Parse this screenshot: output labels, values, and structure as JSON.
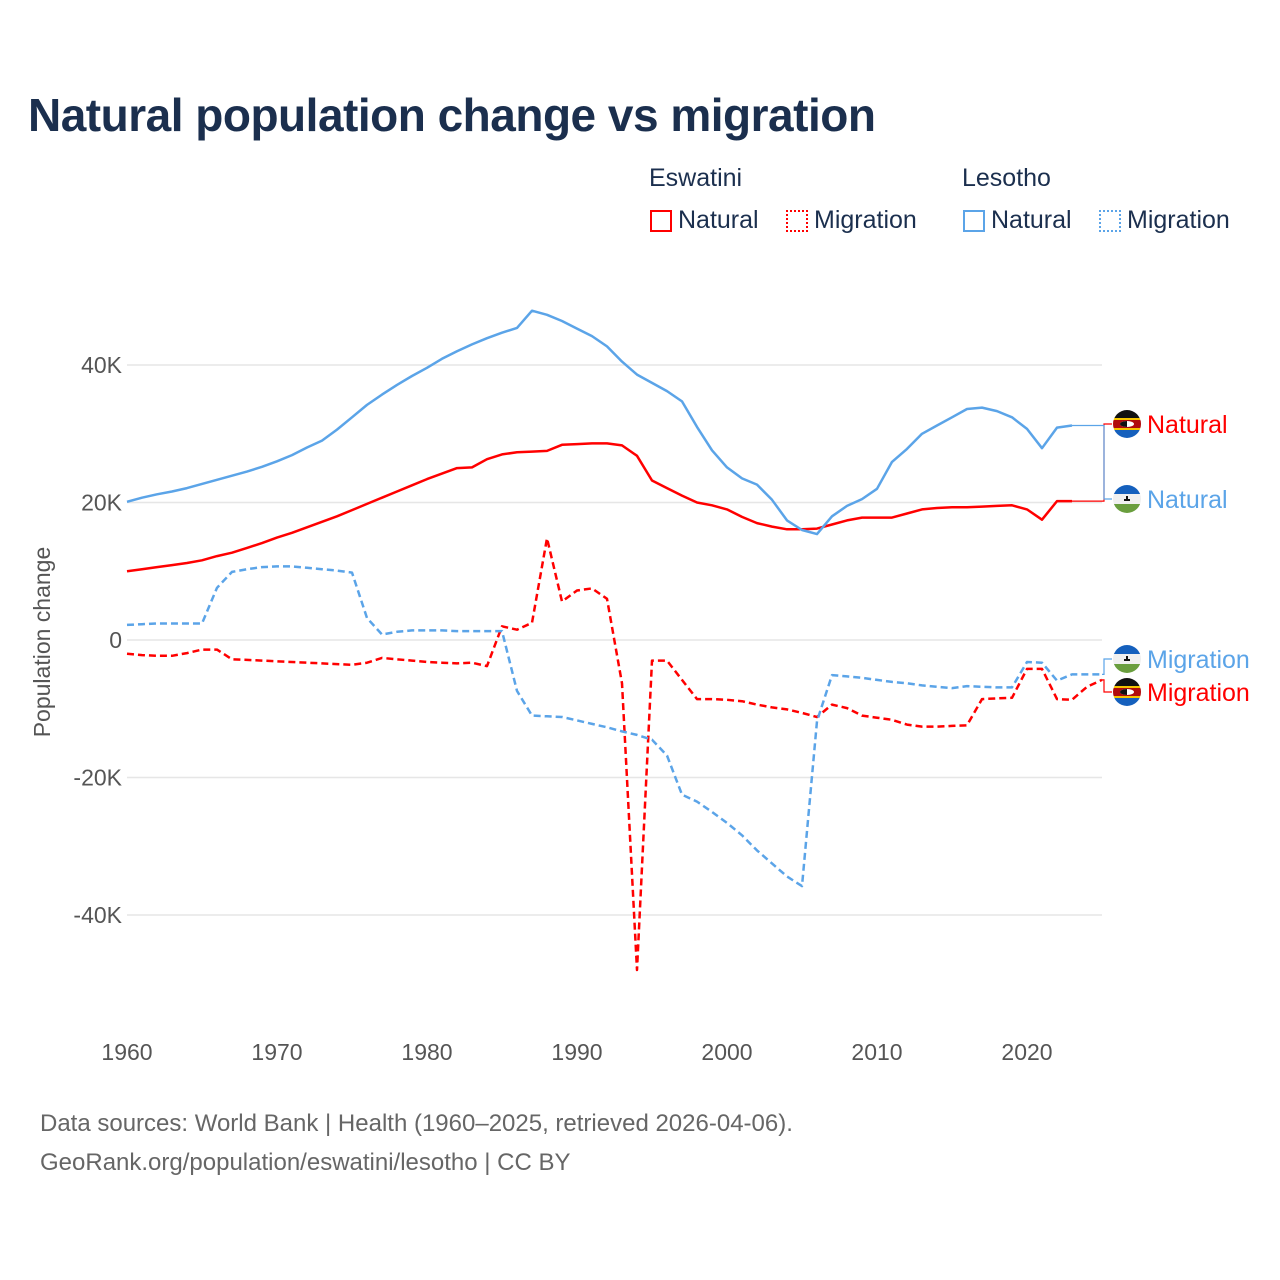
{
  "title": "Natural population change vs migration",
  "legend": {
    "groups": [
      {
        "label": "Eswatini",
        "items": [
          {
            "label": "Natural",
            "style": "solid"
          },
          {
            "label": "Migration",
            "style": "dotted"
          }
        ],
        "color": "#ff0000"
      },
      {
        "label": "Lesotho",
        "items": [
          {
            "label": "Natural",
            "style": "solid"
          },
          {
            "label": "Migration",
            "style": "dotted"
          }
        ],
        "color": "#5ba4e8"
      }
    ]
  },
  "footer": {
    "line1": "Data sources: World Bank | Health (1960–2025, retrieved 2026-04-06).",
    "line2": "GeoRank.org/population/eswatini/lesotho | CC BY"
  },
  "chart_data": {
    "type": "line",
    "title": "Natural population change vs migration",
    "xlabel": "",
    "ylabel": "Population change",
    "xlim": [
      1960,
      2025
    ],
    "ylim": [
      -52000,
      52000
    ],
    "x_ticks": [
      1960,
      1970,
      1980,
      1990,
      2000,
      2010,
      2020
    ],
    "x_tick_labels": [
      "1960",
      "1970",
      "1980",
      "1990",
      "2000",
      "2010",
      "2020"
    ],
    "y_ticks": [
      40000,
      20000,
      0,
      -20000,
      -40000
    ],
    "y_tick_labels": [
      "40K",
      "20K",
      "0",
      "-20K",
      "-40K"
    ],
    "grid": true,
    "legend_position": "top-right",
    "start_year": 1960,
    "series": [
      {
        "name": "Eswatini Natural",
        "end_label": "Natural",
        "color": "#ff0000",
        "dash": false,
        "values": [
          10000,
          10300,
          10600,
          10900,
          11200,
          11600,
          12200,
          12700,
          13400,
          14100,
          14900,
          15600,
          16400,
          17200,
          18000,
          18900,
          19800,
          20700,
          21600,
          22500,
          23400,
          24200,
          25000,
          25100,
          26300,
          27000,
          27300,
          27400,
          27500,
          28400,
          28500,
          28600,
          28600,
          28300,
          26800,
          23200,
          22100,
          21000,
          20000,
          19600,
          19000,
          17900,
          17000,
          16500,
          16100,
          16100,
          16200,
          16800,
          17400,
          17800,
          17800,
          17800,
          18400,
          19000,
          19200,
          19300,
          19300,
          19400,
          19500,
          19600,
          19000,
          17500,
          20200,
          20200
        ]
      },
      {
        "name": "Lesotho Natural",
        "end_label": "Natural",
        "color": "#5ba4e8",
        "dash": false,
        "values": [
          20100,
          20700,
          21200,
          21600,
          22100,
          22700,
          23300,
          23900,
          24500,
          25200,
          26000,
          26900,
          28000,
          29000,
          30600,
          32400,
          34200,
          35700,
          37100,
          38400,
          39600,
          40900,
          42000,
          43000,
          43900,
          44700,
          45400,
          47900,
          47300,
          46400,
          45300,
          44200,
          42700,
          40500,
          38600,
          37400,
          36200,
          34700,
          31000,
          27600,
          25100,
          23500,
          22600,
          20400,
          17400,
          16000,
          15400,
          18000,
          19500,
          20500,
          22000,
          25900,
          27800,
          30000,
          31200,
          32400,
          33600,
          33800,
          33300,
          32400,
          30700,
          27900,
          30900,
          31200
        ]
      },
      {
        "name": "Eswatini Migration",
        "end_label": "Migration",
        "color": "#ff0000",
        "dash": true,
        "values": [
          -2000,
          -2200,
          -2300,
          -2300,
          -1900,
          -1400,
          -1400,
          -2800,
          -2900,
          -3000,
          -3100,
          -3200,
          -3300,
          -3400,
          -3500,
          -3600,
          -3300,
          -2600,
          -2800,
          -3000,
          -3200,
          -3300,
          -3400,
          -3300,
          -3800,
          2000,
          1500,
          2500,
          14800,
          5600,
          7200,
          7500,
          6000,
          -6300,
          -48000,
          -3000,
          -3000,
          -5800,
          -8600,
          -8600,
          -8700,
          -8900,
          -9400,
          -9800,
          -10100,
          -10600,
          -11200,
          -9400,
          -9900,
          -11000,
          -11300,
          -11600,
          -12300,
          -12600,
          -12600,
          -12500,
          -12400,
          -8600,
          -8500,
          -8400,
          -4200,
          -4200,
          -8600,
          -8700,
          -6800,
          -5800
        ]
      },
      {
        "name": "Lesotho Migration",
        "end_label": "Migration",
        "color": "#5ba4e8",
        "dash": true,
        "values": [
          2200,
          2300,
          2400,
          2400,
          2400,
          2400,
          7600,
          9900,
          10300,
          10600,
          10700,
          10700,
          10500,
          10300,
          10100,
          9800,
          3200,
          800,
          1200,
          1400,
          1400,
          1400,
          1300,
          1300,
          1300,
          1300,
          -7400,
          -11000,
          -11100,
          -11200,
          -11700,
          -12200,
          -12700,
          -13300,
          -13800,
          -14500,
          -16800,
          -22500,
          -23500,
          -25000,
          -26600,
          -28400,
          -30600,
          -32500,
          -34400,
          -35800,
          -11800,
          -5100,
          -5300,
          -5500,
          -5800,
          -6100,
          -6300,
          -6600,
          -6800,
          -7000,
          -6700,
          -6800,
          -6900,
          -6900,
          -3200,
          -3300,
          -5900,
          -5000,
          -5000,
          -5000
        ]
      }
    ]
  }
}
